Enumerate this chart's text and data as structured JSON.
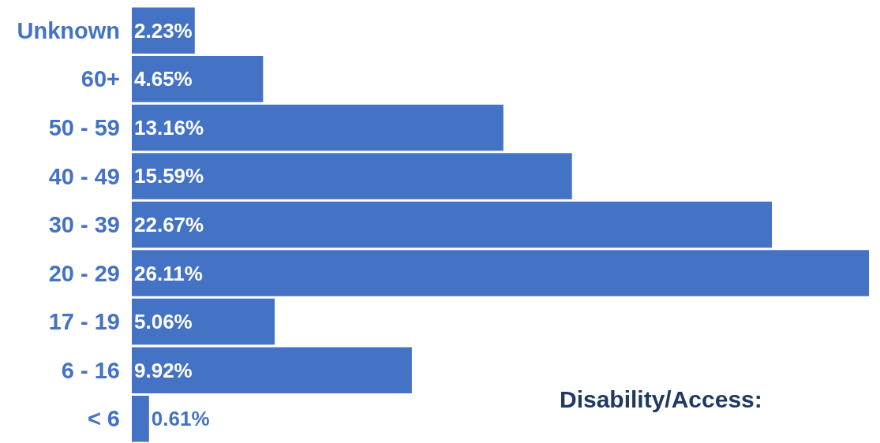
{
  "chart_data": {
    "type": "bar",
    "orientation": "horizontal",
    "categories": [
      "Unknown",
      "60+",
      "50 - 59",
      "40 - 49",
      "30 - 39",
      "20 - 29",
      "17 - 19",
      "6 - 16",
      "< 6"
    ],
    "values": [
      2.23,
      4.65,
      13.16,
      15.59,
      22.67,
      26.11,
      5.06,
      9.92,
      0.61
    ],
    "value_labels": [
      "2.23%",
      "4.65%",
      "13.16%",
      "15.59%",
      "22.67%",
      "26.11%",
      "5.06%",
      "9.92%",
      "0.61%"
    ],
    "color": "#4472c4",
    "xlim": [
      0,
      26.5
    ],
    "tick_labels": "y",
    "grid": false,
    "annotations": [
      "Disability/Access:"
    ]
  }
}
